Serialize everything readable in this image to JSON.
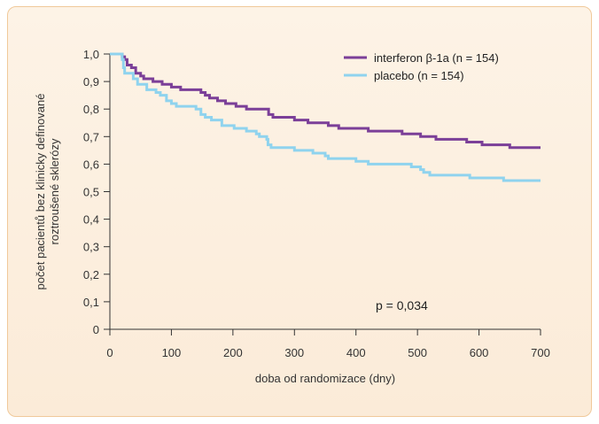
{
  "chart_data": {
    "type": "line",
    "title": "",
    "xlabel": "doba od randomizace (dny)",
    "ylabel": [
      "počet pacientů bez klinicky definované",
      "roztroušené sklerózy"
    ],
    "xlim": [
      0,
      700
    ],
    "ylim": [
      0,
      1.0
    ],
    "x_ticks": [
      0,
      100,
      200,
      300,
      400,
      500,
      600,
      700
    ],
    "x_tick_labels": [
      "0",
      "100",
      "200",
      "300",
      "400",
      "500",
      "600",
      "700"
    ],
    "y_ticks": [
      0,
      0.1,
      0.2,
      0.3,
      0.4,
      0.5,
      0.6,
      0.7,
      0.8,
      0.9,
      1.0
    ],
    "y_tick_labels": [
      "0",
      "0,1",
      "0,2",
      "0,3",
      "0,4",
      "0,5",
      "0,6",
      "0,7",
      "0,8",
      "0,9",
      "1,0"
    ],
    "grid": false,
    "legend_position": "top-right",
    "annotation": "p = 0,034",
    "series": [
      {
        "name": "interferon β-1a (n = 154)",
        "color": "#7b3f98",
        "points": [
          [
            0,
            1.0
          ],
          [
            18,
            1.0
          ],
          [
            20,
            0.99
          ],
          [
            24,
            0.98
          ],
          [
            28,
            0.96
          ],
          [
            35,
            0.95
          ],
          [
            42,
            0.93
          ],
          [
            50,
            0.92
          ],
          [
            55,
            0.91
          ],
          [
            70,
            0.9
          ],
          [
            85,
            0.89
          ],
          [
            100,
            0.88
          ],
          [
            115,
            0.87
          ],
          [
            148,
            0.86
          ],
          [
            155,
            0.85
          ],
          [
            162,
            0.84
          ],
          [
            175,
            0.83
          ],
          [
            188,
            0.82
          ],
          [
            205,
            0.81
          ],
          [
            222,
            0.8
          ],
          [
            258,
            0.78
          ],
          [
            265,
            0.77
          ],
          [
            300,
            0.76
          ],
          [
            320,
            0.76
          ],
          [
            322,
            0.75
          ],
          [
            355,
            0.74
          ],
          [
            372,
            0.73
          ],
          [
            420,
            0.72
          ],
          [
            475,
            0.71
          ],
          [
            505,
            0.7
          ],
          [
            530,
            0.69
          ],
          [
            580,
            0.68
          ],
          [
            605,
            0.67
          ],
          [
            650,
            0.66
          ],
          [
            700,
            0.66
          ]
        ]
      },
      {
        "name": "placebo (n = 154)",
        "color": "#8fd3ee",
        "points": [
          [
            0,
            1.0
          ],
          [
            20,
            0.98
          ],
          [
            22,
            0.95
          ],
          [
            24,
            0.93
          ],
          [
            38,
            0.91
          ],
          [
            45,
            0.89
          ],
          [
            60,
            0.87
          ],
          [
            75,
            0.86
          ],
          [
            82,
            0.85
          ],
          [
            92,
            0.83
          ],
          [
            100,
            0.82
          ],
          [
            108,
            0.81
          ],
          [
            140,
            0.8
          ],
          [
            148,
            0.78
          ],
          [
            155,
            0.77
          ],
          [
            165,
            0.76
          ],
          [
            182,
            0.74
          ],
          [
            202,
            0.73
          ],
          [
            222,
            0.72
          ],
          [
            238,
            0.71
          ],
          [
            243,
            0.7
          ],
          [
            255,
            0.69
          ],
          [
            257,
            0.67
          ],
          [
            262,
            0.66
          ],
          [
            300,
            0.65
          ],
          [
            330,
            0.64
          ],
          [
            350,
            0.63
          ],
          [
            355,
            0.62
          ],
          [
            400,
            0.61
          ],
          [
            420,
            0.6
          ],
          [
            490,
            0.59
          ],
          [
            505,
            0.58
          ],
          [
            510,
            0.57
          ],
          [
            520,
            0.56
          ],
          [
            540,
            0.56
          ],
          [
            585,
            0.55
          ],
          [
            640,
            0.54
          ],
          [
            700,
            0.54
          ]
        ]
      }
    ]
  }
}
